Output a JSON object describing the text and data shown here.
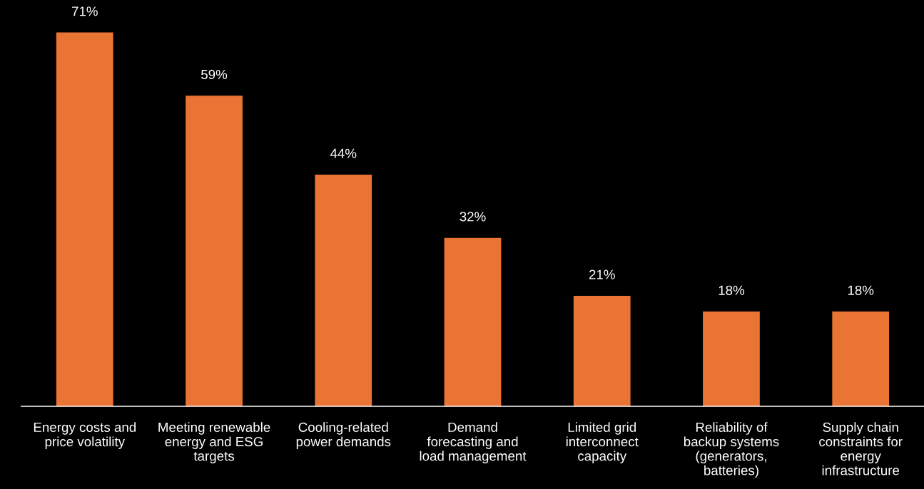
{
  "chart_data": {
    "type": "bar",
    "categories": [
      "Energy costs and\nprice volatility",
      "Meeting renewable\nenergy and ESG\ntargets",
      "Cooling-related\npower demands",
      "Demand\nforecasting and\nload management",
      "Limited grid\ninterconnect\ncapacity",
      "Reliability of\nbackup systems\n(generators,\nbatteries)",
      "Supply chain\nconstraints for\nenergy\ninfrastructure"
    ],
    "values": [
      71,
      59,
      44,
      32,
      21,
      18,
      18
    ],
    "value_labels": [
      "71%",
      "59%",
      "44%",
      "32%",
      "21%",
      "18%",
      "18%"
    ],
    "color": "#ea7434",
    "grid": false,
    "legend": false
  }
}
